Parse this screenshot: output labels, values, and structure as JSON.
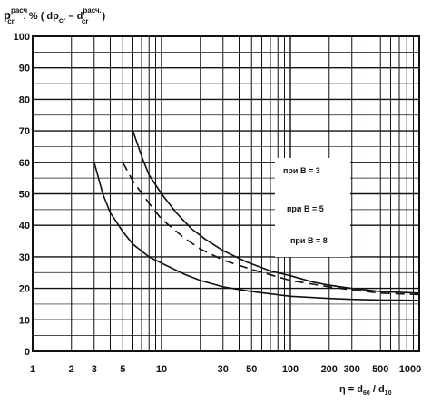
{
  "chart_data": {
    "type": "line",
    "x_scale": "log",
    "xlim": [
      1,
      1000
    ],
    "ylim": [
      0,
      100
    ],
    "grid": true,
    "ylabel": {
      "main": "p",
      "sup": "расч",
      "sub": "cr",
      "rest": ", % ( dp",
      "sub2": "cr",
      "minus": " – d",
      "sup3": "расч.",
      "sub3": "cr",
      "close": " )"
    },
    "xlabel": {
      "eta": "η = d",
      "sub1": "60",
      "slash": " / d",
      "sub2": "10"
    },
    "x_ticks": [
      "1",
      "2",
      "3",
      "5",
      "10",
      "30",
      "50",
      "100",
      "200",
      "300",
      "500",
      "1000"
    ],
    "x_tick_values": [
      1,
      2,
      3,
      5,
      10,
      30,
      50,
      100,
      200,
      300,
      500,
      1000
    ],
    "y_ticks": [
      "0",
      "10",
      "20",
      "30",
      "40",
      "50",
      "60",
      "70",
      "80",
      "90",
      "100"
    ],
    "y_tick_values": [
      0,
      10,
      20,
      30,
      40,
      50,
      60,
      70,
      80,
      90,
      100
    ],
    "annotations": [
      "при  В = 3",
      "при  В = 5",
      "при  В = 8"
    ],
    "series": [
      {
        "style": "solid",
        "x": [
          6,
          7,
          8,
          10,
          13,
          17,
          22,
          30,
          45,
          70,
          100,
          150,
          200,
          300,
          500,
          1000
        ],
        "y": [
          70,
          62,
          56,
          50,
          44,
          39,
          35.5,
          32,
          28.5,
          25.5,
          24,
          22,
          21,
          20,
          19,
          18.5
        ]
      },
      {
        "style": "dashed",
        "x": [
          5,
          6,
          8,
          10,
          15,
          20,
          30,
          50,
          100,
          200,
          300,
          500,
          1000
        ],
        "y": [
          60,
          54,
          47,
          42,
          36,
          32.5,
          29,
          26,
          22.5,
          20.5,
          19.5,
          18.5,
          18
        ]
      },
      {
        "style": "solid",
        "x": [
          3,
          3.5,
          4,
          5,
          6,
          8,
          10,
          15,
          20,
          30,
          50,
          100,
          200,
          300,
          500,
          1000
        ],
        "y": [
          60,
          50,
          44,
          38,
          34,
          30,
          28,
          24.5,
          22.5,
          20.5,
          19,
          17.5,
          16.8,
          16.5,
          16.3,
          16.2
        ]
      }
    ]
  }
}
